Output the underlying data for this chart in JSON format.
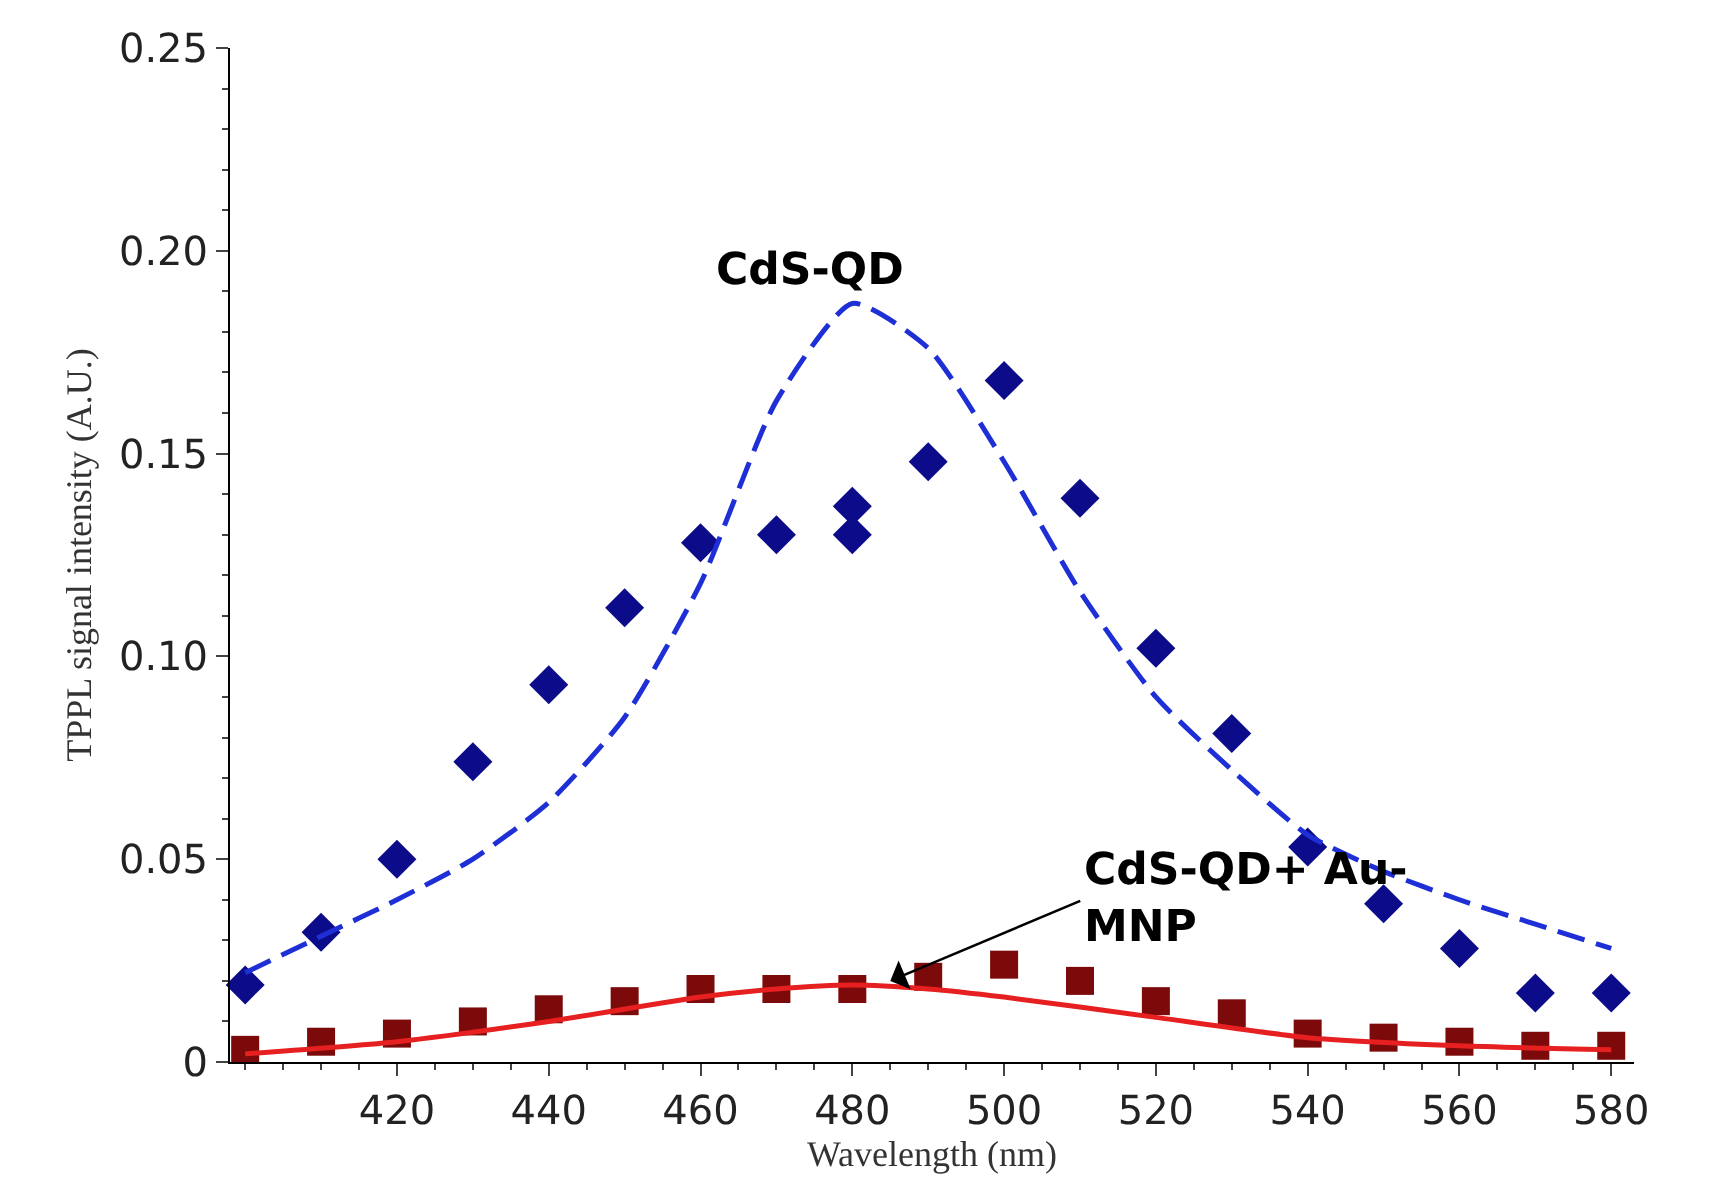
{
  "chart_data": {
    "type": "scatter",
    "xlabel": "Wavelength (nm)",
    "ylabel": "TPPL signal intensity (A.U.)",
    "xlim": [
      398,
      583
    ],
    "xticks": [
      420,
      440,
      460,
      480,
      500,
      520,
      540,
      560,
      580
    ],
    "ylim": [
      0,
      0.25
    ],
    "yticks": [
      0,
      0.05,
      {
        "value": 0.1,
        "label": "0.10"
      },
      0.15,
      {
        "value": 0.2,
        "label": "0.20"
      },
      0.25
    ],
    "series": [
      {
        "type": "line",
        "color": "#1f2fd6",
        "line_style": "dashed",
        "marker": "none",
        "x": [
          400,
          410,
          420,
          430,
          440,
          450,
          460,
          470,
          480,
          490,
          500,
          510,
          520,
          530,
          540,
          550,
          560,
          570,
          580
        ],
        "values": [
          0.022,
          0.031,
          0.04,
          0.05,
          0.064,
          0.085,
          0.118,
          0.163,
          0.187,
          0.176,
          0.148,
          0.116,
          0.09,
          0.072,
          0.056,
          0.047,
          0.04,
          0.034,
          0.028
        ]
      },
      {
        "type": "line",
        "color": "#e62020",
        "line_style": "solid",
        "marker": "none",
        "x": [
          400,
          420,
          440,
          460,
          470,
          480,
          490,
          500,
          520,
          540,
          560,
          580
        ],
        "values": [
          0.002,
          0.005,
          0.01,
          0.016,
          0.018,
          0.019,
          0.018,
          0.016,
          0.011,
          0.006,
          0.004,
          0.003
        ]
      },
      {
        "color": "#0c0c8a",
        "marker": "diamond",
        "x": [
          400,
          410,
          420,
          430,
          440,
          450,
          460,
          470,
          480,
          480,
          490,
          500,
          510,
          520,
          530,
          540,
          550,
          560,
          570,
          580
        ],
        "values": [
          0.019,
          0.032,
          0.05,
          0.074,
          0.093,
          0.112,
          0.128,
          0.13,
          0.13,
          0.137,
          0.148,
          0.168,
          0.139,
          0.102,
          0.081,
          0.053,
          0.039,
          0.028,
          0.017,
          0.017
        ]
      },
      {
        "color": "#7d0a0a",
        "marker": "square",
        "x": [
          400,
          410,
          420,
          430,
          440,
          450,
          460,
          470,
          480,
          490,
          500,
          510,
          520,
          530,
          540,
          550,
          560,
          570,
          580
        ],
        "values": [
          0.003,
          0.005,
          0.007,
          0.01,
          0.013,
          0.015,
          0.018,
          0.018,
          0.018,
          0.021,
          0.024,
          0.02,
          0.015,
          0.012,
          0.007,
          0.006,
          0.005,
          0.004,
          0.004
        ]
      }
    ],
    "annotations": [
      {
        "text": "CdS-QD",
        "x": 480,
        "y": 0.187
      },
      {
        "text": "CdS-QD+ Au-MNP",
        "x": 485,
        "y": 0.02
      }
    ]
  }
}
